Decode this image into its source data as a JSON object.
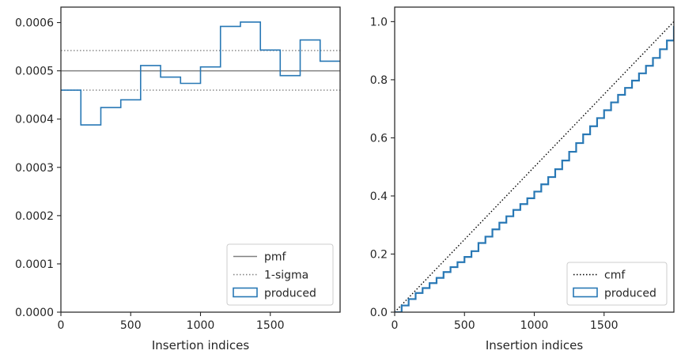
{
  "chart_data": [
    {
      "type": "histogram",
      "xlabel": "Insertion indices",
      "ylabel": "",
      "xlim": [
        0,
        2000
      ],
      "ylim": [
        0,
        0.000632
      ],
      "xticks": [
        0,
        500,
        1000,
        1500
      ],
      "xtick_labels": [
        "0",
        "500",
        "1000",
        "1500"
      ],
      "yticks": [
        0,
        0.0001,
        0.0002,
        0.0003,
        0.0004,
        0.0005,
        0.0006
      ],
      "ytick_labels": [
        "0.0000",
        "0.0001",
        "0.0002",
        "0.0003",
        "0.0004",
        "0.0005",
        "0.0006"
      ],
      "bin_edges": [
        0,
        143,
        286,
        429,
        571,
        714,
        857,
        1000,
        1143,
        1286,
        1429,
        1571,
        1714,
        1857,
        2000
      ],
      "values": [
        0.00046,
        0.000388,
        0.000424,
        0.00044,
        0.000511,
        0.000487,
        0.000474,
        0.000508,
        0.000592,
        0.000601,
        0.000543,
        0.00049,
        0.000564,
        0.00052
      ],
      "reference_lines": [
        {
          "name": "pmf",
          "y": 0.0005,
          "style": "solid",
          "color": "#808080"
        },
        {
          "name": "1-sigma",
          "y": 0.000542,
          "style": "dotted",
          "color": "#808080"
        },
        {
          "name": "1-sigma",
          "y": 0.00046,
          "style": "dotted",
          "color": "#808080"
        }
      ],
      "series_color": "#2878b5",
      "grid": false,
      "legend": {
        "placement": "lower-right",
        "entries": [
          {
            "label": "pmf",
            "kind": "solid-line",
            "color": "#808080"
          },
          {
            "label": "1-sigma",
            "kind": "dotted-line",
            "color": "#808080"
          },
          {
            "label": "produced",
            "kind": "patch",
            "color": "#2878b5"
          }
        ]
      }
    },
    {
      "type": "line",
      "xlabel": "Insertion indices",
      "ylabel": "",
      "xlim": [
        0,
        2000
      ],
      "ylim": [
        0,
        1.05
      ],
      "xticks": [
        0,
        500,
        1000,
        1500
      ],
      "xtick_labels": [
        "0",
        "500",
        "1000",
        "1500"
      ],
      "yticks": [
        0,
        0.2,
        0.4,
        0.6,
        0.8,
        1.0
      ],
      "ytick_labels": [
        "0.0",
        "0.2",
        "0.4",
        "0.6",
        "0.8",
        "1.0"
      ],
      "series": [
        {
          "name": "cmf",
          "style": "dotted",
          "color": "#000000",
          "x": [
            0,
            2000
          ],
          "y": [
            0,
            1.0
          ]
        },
        {
          "name": "produced",
          "style": "step",
          "color": "#2878b5",
          "x": [
            0,
            50,
            100,
            150,
            200,
            250,
            300,
            350,
            400,
            450,
            500,
            550,
            600,
            650,
            700,
            750,
            800,
            850,
            900,
            950,
            1000,
            1050,
            1100,
            1150,
            1200,
            1250,
            1300,
            1350,
            1400,
            1450,
            1500,
            1550,
            1600,
            1650,
            1700,
            1750,
            1800,
            1850,
            1900,
            1950,
            2000
          ],
          "y": [
            0.0,
            0.023,
            0.045,
            0.066,
            0.083,
            0.1,
            0.118,
            0.138,
            0.155,
            0.172,
            0.19,
            0.21,
            0.238,
            0.26,
            0.285,
            0.308,
            0.33,
            0.352,
            0.372,
            0.392,
            0.415,
            0.44,
            0.465,
            0.492,
            0.522,
            0.552,
            0.582,
            0.612,
            0.64,
            0.668,
            0.695,
            0.722,
            0.748,
            0.772,
            0.797,
            0.822,
            0.848,
            0.875,
            0.905,
            0.935,
            0.985
          ]
        }
      ],
      "grid": false,
      "legend": {
        "placement": "lower-right",
        "entries": [
          {
            "label": "cmf",
            "kind": "dotted-line",
            "color": "#000000"
          },
          {
            "label": "produced",
            "kind": "patch",
            "color": "#2878b5"
          }
        ]
      }
    }
  ]
}
